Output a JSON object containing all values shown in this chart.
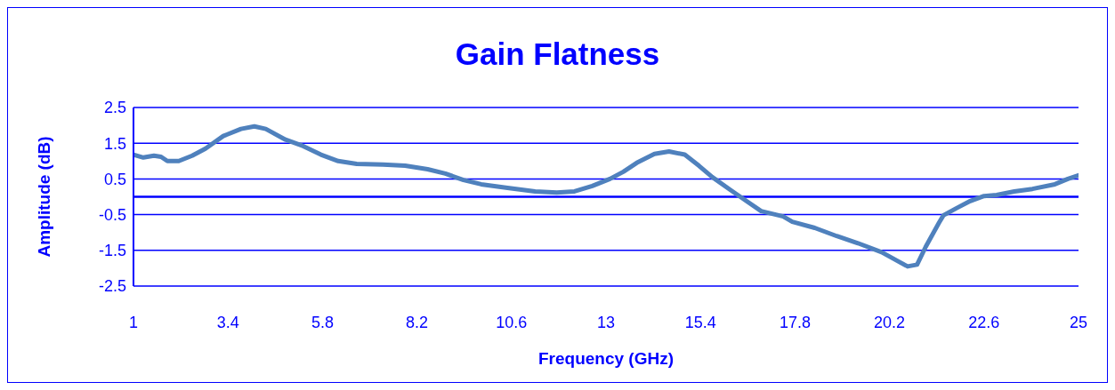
{
  "chart_data": {
    "type": "line",
    "title": "Gain Flatness",
    "xlabel": "Frequency (GHz)",
    "ylabel": "Amplitude (dB)",
    "x": [
      1,
      1.25,
      1.52,
      1.7,
      1.86,
      2.15,
      2.49,
      2.83,
      3.28,
      3.73,
      4.07,
      4.36,
      4.86,
      5.31,
      5.76,
      6.2,
      6.67,
      7.34,
      7.9,
      8.47,
      8.92,
      9.38,
      9.83,
      10.5,
      11.2,
      11.75,
      12.2,
      12.65,
      13.1,
      13.44,
      13.78,
      14.23,
      14.6,
      15.0,
      15.36,
      15.7,
      16.15,
      16.5,
      16.94,
      17.5,
      17.73,
      18.3,
      18.86,
      19.4,
      20.0,
      20.44,
      20.66,
      20.9,
      21.12,
      21.46,
      21.57,
      21.9,
      22.25,
      22.6,
      22.92,
      23.37,
      23.83,
      24.4,
      24.73,
      25
    ],
    "series": [
      {
        "color": "#4f81bd",
        "values": [
          1.18,
          1.1,
          1.15,
          1.12,
          1.0,
          1.0,
          1.15,
          1.35,
          1.7,
          1.9,
          1.97,
          1.9,
          1.6,
          1.42,
          1.18,
          1.0,
          0.92,
          0.9,
          0.87,
          0.77,
          0.65,
          0.47,
          0.35,
          0.25,
          0.15,
          0.12,
          0.15,
          0.3,
          0.5,
          0.7,
          0.95,
          1.2,
          1.27,
          1.18,
          0.87,
          0.55,
          0.2,
          -0.07,
          -0.4,
          -0.55,
          -0.7,
          -0.87,
          -1.1,
          -1.3,
          -1.55,
          -1.82,
          -1.95,
          -1.9,
          -1.4,
          -0.72,
          -0.52,
          -0.32,
          -0.12,
          0.02,
          0.05,
          0.15,
          0.22,
          0.35,
          0.5,
          0.6
        ]
      }
    ],
    "xlim": [
      1,
      25
    ],
    "xticks": [
      1,
      3.4,
      5.8,
      8.2,
      10.6,
      13,
      15.4,
      17.8,
      20.2,
      22.6,
      25
    ],
    "ylim": [
      -2.5,
      2.5
    ],
    "yticks": [
      -2.5,
      -1.5,
      -0.5,
      0.5,
      1.5,
      2.5
    ],
    "ref_lines": [
      {
        "axis": "y",
        "value": 0,
        "color": "#0000ff"
      }
    ],
    "grid": "y",
    "legend": false,
    "marker": "none",
    "line_style": "solid"
  }
}
